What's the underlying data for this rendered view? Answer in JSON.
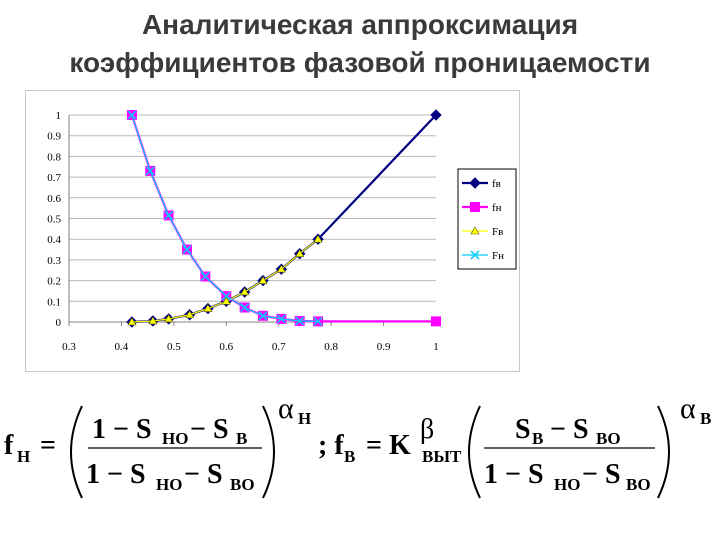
{
  "title": {
    "line1": "Аналитическая аппроксимация",
    "line2": "коэффициентов фазовой проницаемости"
  },
  "colors": {
    "fb": "#000080",
    "fn": "#ff00ff",
    "Fb": "#ffff00",
    "Fn": "#00ccff",
    "title": "#3a3a3a"
  },
  "chart_data": {
    "type": "line",
    "x_ticks": [
      "0.3",
      "0.4",
      "0.5",
      "0.6",
      "0.7",
      "0.8",
      "0.9",
      "1"
    ],
    "y_ticks": [
      "0",
      "0.1",
      "0.2",
      "0.3",
      "0.4",
      "0.5",
      "0.6",
      "0.7",
      "0.8",
      "0.9",
      "1"
    ],
    "xlim": [
      0.3,
      1
    ],
    "ylim": [
      0,
      1
    ],
    "grid": "horizontal",
    "legend": "right",
    "series": [
      {
        "name": "fв",
        "color": "#000080",
        "marker": "diamond",
        "x": [
          0.42,
          0.46,
          0.49,
          0.53,
          0.565,
          0.6,
          0.635,
          0.67,
          0.705,
          0.74,
          0.775,
          1.0
        ],
        "y": [
          0.0,
          0.005,
          0.015,
          0.035,
          0.065,
          0.1,
          0.145,
          0.2,
          0.255,
          0.33,
          0.4,
          1.0
        ]
      },
      {
        "name": "fн",
        "color": "#ff00ff",
        "marker": "square",
        "x": [
          0.42,
          0.455,
          0.49,
          0.525,
          0.56,
          0.6,
          0.635,
          0.67,
          0.705,
          0.74,
          0.775,
          1.0
        ],
        "y": [
          1.0,
          0.73,
          0.515,
          0.35,
          0.22,
          0.125,
          0.07,
          0.03,
          0.015,
          0.005,
          0.003,
          0.003
        ]
      },
      {
        "name": "Fв",
        "color": "#ffff00",
        "marker": "triangle",
        "x": [
          0.42,
          0.46,
          0.49,
          0.53,
          0.565,
          0.6,
          0.635,
          0.67,
          0.705,
          0.74,
          0.775
        ],
        "y": [
          0.0,
          0.005,
          0.015,
          0.035,
          0.065,
          0.1,
          0.145,
          0.2,
          0.255,
          0.33,
          0.4
        ]
      },
      {
        "name": "Fн",
        "color": "#00ccff",
        "marker": "x",
        "x": [
          0.42,
          0.455,
          0.49,
          0.525,
          0.56,
          0.6,
          0.635,
          0.67,
          0.705,
          0.74,
          0.775
        ],
        "y": [
          1.0,
          0.73,
          0.515,
          0.35,
          0.22,
          0.125,
          0.07,
          0.03,
          0.015,
          0.005,
          0.003
        ]
      }
    ]
  },
  "formula": {
    "lhs1": "f",
    "lhs1_sub": "Н",
    "eq": "=",
    "num1": "1 − S",
    "num1_sub": "НО",
    "num1_b": " − S",
    "num1_b_sub": "В",
    "den1": "1 − S",
    "den1_sub": "НО",
    "den1_b": " − S",
    "den1_b_sub": "ВО",
    "exp1": "α",
    "exp1_sub": "Н",
    "sep": "; f",
    "lhs2_sub": "В",
    "eq2": "= K",
    "beta": "β",
    "k_sub": "ВЫТ",
    "num2": "S",
    "num2_sub": "В",
    "num2_b": " − S",
    "num2_b_sub": "ВО",
    "den2": "1 − S",
    "den2_sub": "НО",
    "den2_b": " − S",
    "den2_b_sub": "ВО",
    "exp2": "α",
    "exp2_sub": "В"
  }
}
